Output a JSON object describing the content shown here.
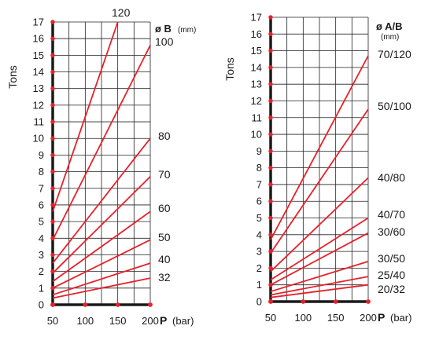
{
  "chart_data": [
    {
      "type": "line",
      "ylabel": "Tons",
      "xlabel": "P",
      "xunit": "(bar)",
      "legend_title": "ø B",
      "legend_unit": "(mm)",
      "xlim": [
        50,
        200
      ],
      "ylim": [
        0,
        17
      ],
      "x_ticks": [
        "50",
        "100",
        "150",
        "200"
      ],
      "y_ticks": [
        "0",
        "1",
        "2",
        "3",
        "4",
        "5",
        "6",
        "7",
        "8",
        "9",
        "10",
        "11",
        "12",
        "13",
        "14",
        "15",
        "16",
        "17"
      ],
      "grid": true,
      "colors": {
        "series": "#e8202a",
        "axis": "#1a1a1a",
        "grid": "#222222"
      },
      "series": [
        {
          "name": "120",
          "x": [
            50,
            150
          ],
          "y": [
            5.6,
            17.0
          ]
        },
        {
          "name": "100",
          "x": [
            50,
            200
          ],
          "y": [
            3.9,
            15.6
          ]
        },
        {
          "name": "80",
          "x": [
            50,
            200
          ],
          "y": [
            2.5,
            10.0
          ]
        },
        {
          "name": "70",
          "x": [
            50,
            200
          ],
          "y": [
            1.9,
            7.7
          ]
        },
        {
          "name": "60",
          "x": [
            50,
            200
          ],
          "y": [
            1.4,
            5.6
          ]
        },
        {
          "name": "50",
          "x": [
            50,
            200
          ],
          "y": [
            1.0,
            3.9
          ]
        },
        {
          "name": "40",
          "x": [
            50,
            200
          ],
          "y": [
            0.6,
            2.5
          ]
        },
        {
          "name": "32",
          "x": [
            50,
            200
          ],
          "y": [
            0.4,
            1.6
          ]
        }
      ]
    },
    {
      "type": "line",
      "ylabel": "Tons",
      "xlabel": "P",
      "xunit": "(bar)",
      "legend_title": "ø A/B",
      "legend_unit": "(mm)",
      "xlim": [
        50,
        200
      ],
      "ylim": [
        0,
        17
      ],
      "x_ticks": [
        "50",
        "100",
        "150",
        "200"
      ],
      "y_ticks": [
        "0",
        "1",
        "2",
        "3",
        "4",
        "5",
        "6",
        "7",
        "8",
        "9",
        "10",
        "11",
        "12",
        "13",
        "14",
        "15",
        "16",
        "17"
      ],
      "grid": true,
      "colors": {
        "series": "#e8202a",
        "axis": "#1a1a1a",
        "grid": "#222222"
      },
      "series": [
        {
          "name": "70/120",
          "x": [
            50,
            200
          ],
          "y": [
            3.7,
            14.7
          ]
        },
        {
          "name": "50/100",
          "x": [
            50,
            200
          ],
          "y": [
            2.9,
            11.5
          ]
        },
        {
          "name": "40/80",
          "x": [
            50,
            200
          ],
          "y": [
            1.8,
            7.4
          ]
        },
        {
          "name": "40/70",
          "x": [
            50,
            200
          ],
          "y": [
            1.3,
            5.0
          ]
        },
        {
          "name": "30/60",
          "x": [
            50,
            200
          ],
          "y": [
            1.0,
            4.1
          ]
        },
        {
          "name": "30/50",
          "x": [
            50,
            200
          ],
          "y": [
            0.6,
            2.4
          ]
        },
        {
          "name": "25/40",
          "x": [
            50,
            200
          ],
          "y": [
            0.4,
            1.5
          ]
        },
        {
          "name": "20/32",
          "x": [
            50,
            200
          ],
          "y": [
            0.25,
            1.0
          ]
        }
      ]
    }
  ]
}
